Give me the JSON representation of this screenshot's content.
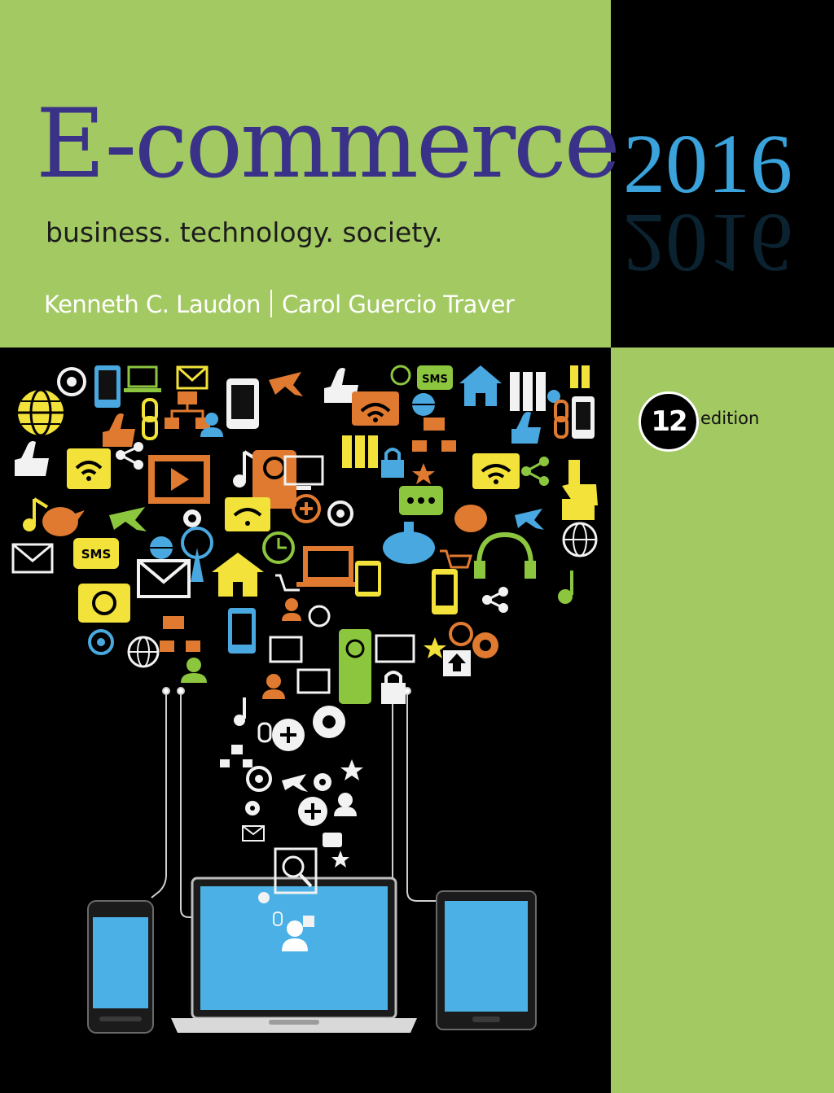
{
  "cover": {
    "title": "E-commerce",
    "year": "2016",
    "subtitle": "business. technology. society.",
    "authors": [
      "Kenneth C. Laudon",
      "Carol Guercio Traver"
    ],
    "edition_number": "12",
    "edition_label": "edition"
  },
  "artwork_labels": {
    "sms_top": "SMS",
    "sms_left": "SMS"
  },
  "colors": {
    "green": "#a3c962",
    "black": "#000000",
    "title_purple": "#3a3289",
    "year_blue": "#3aa3dc",
    "icon_yellow": "#f2e23a",
    "icon_orange": "#e07a30",
    "icon_blue": "#4aa8e0",
    "icon_green": "#8cc63f",
    "icon_white": "#f2f2f2",
    "device_screen": "#4ab0e6"
  },
  "icons": [
    "at-sign-icon",
    "globe-icon",
    "wifi-icon",
    "sms-bubble-icon",
    "home-icon",
    "envelope-icon",
    "airplane-icon",
    "gear-icon",
    "magnifier-plus-icon",
    "cloud-download-icon",
    "shopping-cart-icon",
    "thumbs-up-icon",
    "chain-link-icon",
    "star-icon",
    "headphones-icon",
    "camera-icon",
    "music-note-icon",
    "user-icon",
    "share-icon",
    "lock-icon",
    "smartphone-icon",
    "laptop-icon",
    "tablet-icon"
  ]
}
